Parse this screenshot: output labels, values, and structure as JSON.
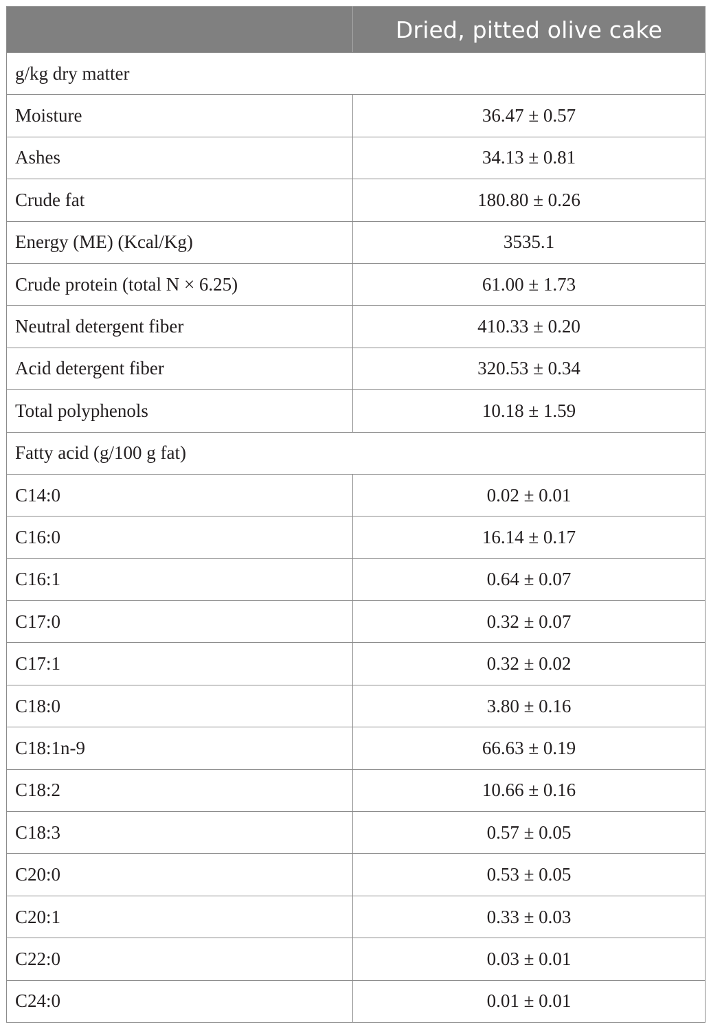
{
  "table": {
    "header": {
      "col1": "",
      "col2": "Dried, pitted olive cake"
    },
    "sections": [
      {
        "title": "g/kg dry matter",
        "rows": [
          {
            "label": "Moisture",
            "value": "36.47 ± 0.57"
          },
          {
            "label": "Ashes",
            "value": "34.13 ± 0.81"
          },
          {
            "label": "Crude fat",
            "value": "180.80 ± 0.26"
          },
          {
            "label": "Energy (ME) (Kcal/Kg)",
            "value": "3535.1"
          },
          {
            "label": "Crude protein (total N × 6.25)",
            "value": "61.00 ± 1.73"
          },
          {
            "label": "Neutral detergent fiber",
            "value": "410.33 ± 0.20"
          },
          {
            "label": "Acid detergent fiber",
            "value": "320.53 ± 0.34"
          },
          {
            "label": "Total polyphenols",
            "value": "10.18 ± 1.59"
          }
        ]
      },
      {
        "title": "Fatty acid (g/100 g fat)",
        "rows": [
          {
            "label": "C14:0",
            "value": "0.02 ± 0.01"
          },
          {
            "label": "C16:0",
            "value": "16.14 ± 0.17"
          },
          {
            "label": "C16:1",
            "value": "0.64 ± 0.07"
          },
          {
            "label": "C17:0",
            "value": "0.32 ± 0.07"
          },
          {
            "label": "C17:1",
            "value": "0.32 ± 0.02"
          },
          {
            "label": "C18:0",
            "value": "3.80 ± 0.16"
          },
          {
            "label": "C18:1n-9",
            "value": "66.63 ± 0.19"
          },
          {
            "label": "C18:2",
            "value": "10.66 ± 0.16"
          },
          {
            "label": "C18:3",
            "value": "0.57 ± 0.05"
          },
          {
            "label": "C20:0",
            "value": "0.53 ± 0.05"
          },
          {
            "label": "C20:1",
            "value": "0.33 ± 0.03"
          },
          {
            "label": "C22:0",
            "value": "0.03 ± 0.01"
          },
          {
            "label": "C24:0",
            "value": "0.01 ± 0.01"
          }
        ]
      }
    ]
  }
}
